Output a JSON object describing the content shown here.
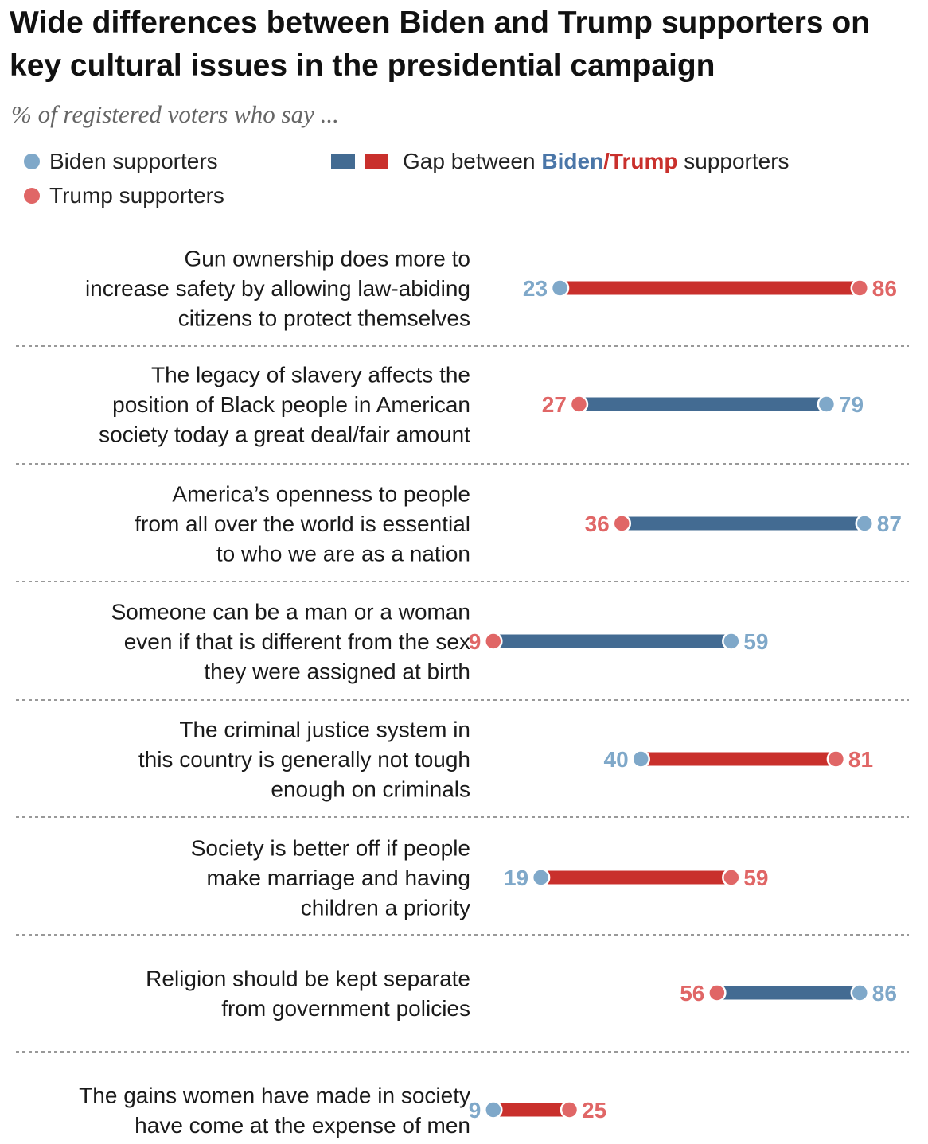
{
  "title": "Wide differences between Biden and Trump supporters on key cultural issues in the presidential campaign",
  "subtitle": "% of registered voters who say ...",
  "legend": {
    "biden": "Biden supporters",
    "trump": "Trump supporters",
    "gap_prefix": "Gap between ",
    "gap_biden": "Biden",
    "gap_slash": "/",
    "gap_trump": "Trump",
    "gap_suffix": " supporters"
  },
  "colors": {
    "biden_dot": "#7fa8c9",
    "trump_dot": "#e06666",
    "biden_bar": "#436b92",
    "trump_bar": "#c9302c",
    "biden_text": "#7fa8c9",
    "trump_text": "#e06666",
    "legend_biden_word": "#4a76a8",
    "legend_trump_word": "#c9302c",
    "divider": "#999999"
  },
  "chart_data": {
    "type": "dot-range",
    "title": "Wide differences between Biden and Trump supporters on key cultural issues in the presidential campaign",
    "subtitle": "% of registered voters who say ...",
    "series": [
      {
        "name": "Biden supporters",
        "key": "biden"
      },
      {
        "name": "Trump supporters",
        "key": "trump"
      }
    ],
    "categories": [
      {
        "label_lines": [
          "Gun ownership does more to",
          "increase safety by allowing law-abiding",
          "citizens to protect themselves"
        ],
        "biden": 23,
        "trump": 86
      },
      {
        "label_lines": [
          "The legacy of slavery affects the",
          "position of Black people in American",
          "society today a great deal/fair amount"
        ],
        "biden": 79,
        "trump": 27
      },
      {
        "label_lines": [
          "America’s openness to people",
          "from all over the world is essential",
          "to who we are as a nation"
        ],
        "biden": 87,
        "trump": 36
      },
      {
        "label_lines": [
          "Someone can be a man or a woman",
          "even if that is different from the sex",
          "they were assigned at birth"
        ],
        "biden": 59,
        "trump": 9
      },
      {
        "label_lines": [
          "The criminal justice system in",
          "this country is generally not tough",
          "enough on criminals"
        ],
        "biden": 40,
        "trump": 81
      },
      {
        "label_lines": [
          "Society is better off if people",
          "make marriage and having",
          "children a priority"
        ],
        "biden": 19,
        "trump": 59
      },
      {
        "label_lines": [
          "Religion should be kept separate",
          "from government policies"
        ],
        "biden": 86,
        "trump": 56
      },
      {
        "label_lines": [
          "The gains women have made in society",
          "have come at the expense of men"
        ],
        "biden": 9,
        "trump": 25
      }
    ],
    "xlim": [
      0,
      100
    ],
    "grid": false,
    "legend_position": "top"
  }
}
